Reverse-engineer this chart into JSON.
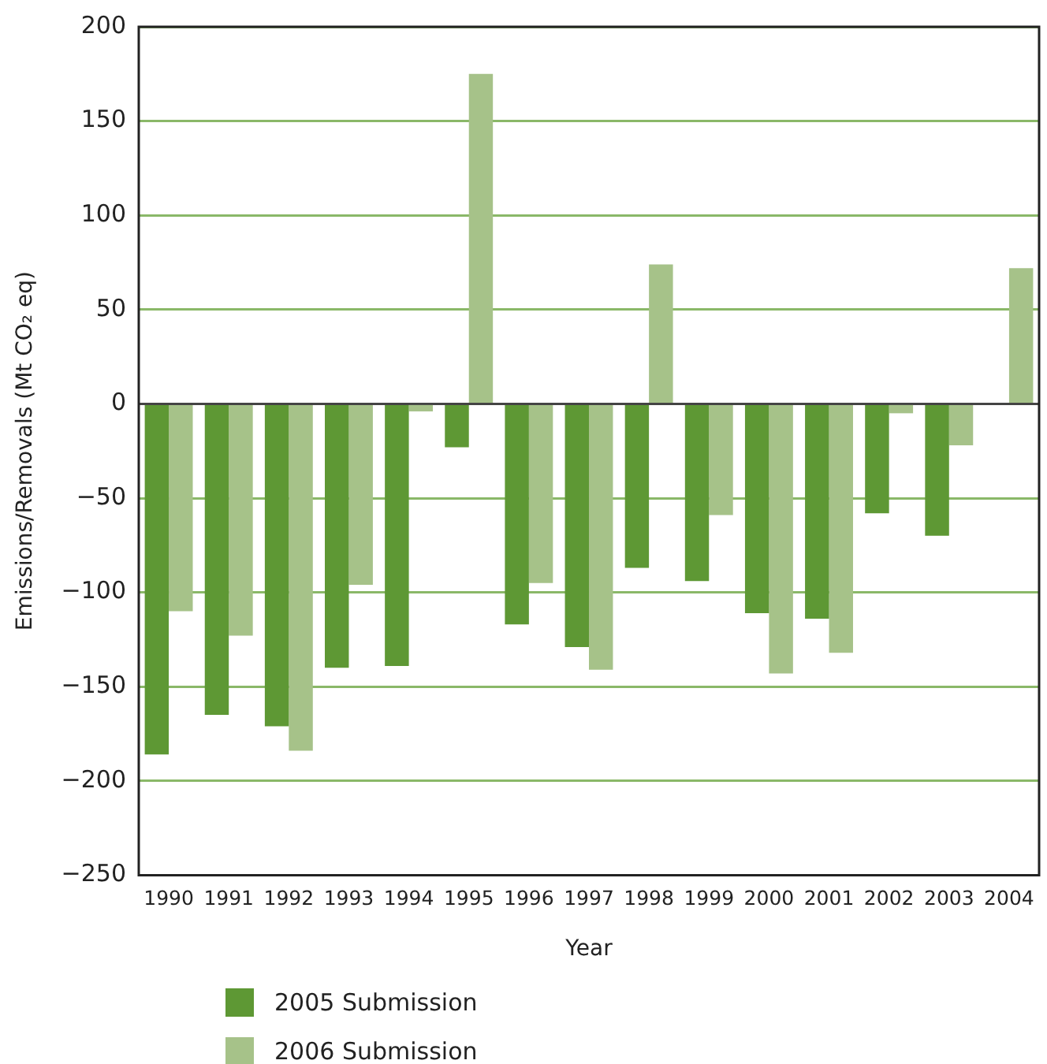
{
  "chart_data": {
    "type": "bar",
    "xlabel": "Year",
    "ylabel": "Emissions/Removals (Mt CO₂ eq)",
    "categories": [
      "1990",
      "1991",
      "1992",
      "1993",
      "1994",
      "1995",
      "1996",
      "1997",
      "1998",
      "1999",
      "2000",
      "2001",
      "2002",
      "2003",
      "2004"
    ],
    "series": [
      {
        "name": "2005 Submission",
        "color": "#5e9834",
        "values": [
          -186,
          -165,
          -171,
          -140,
          -139,
          -23,
          -117,
          -129,
          -87,
          -94,
          -111,
          -114,
          -58,
          -70,
          null
        ]
      },
      {
        "name": "2006 Submission",
        "color": "#a6c289",
        "values": [
          -110,
          -123,
          -184,
          -96,
          -4,
          175,
          -95,
          -141,
          74,
          -59,
          -143,
          -132,
          -5,
          -22,
          72
        ]
      }
    ],
    "ylim": [
      -250,
      200
    ],
    "yticks": [
      -250,
      -200,
      -150,
      -100,
      -50,
      0,
      50,
      100,
      150,
      200
    ],
    "grid": "y",
    "legend": "bottom"
  }
}
